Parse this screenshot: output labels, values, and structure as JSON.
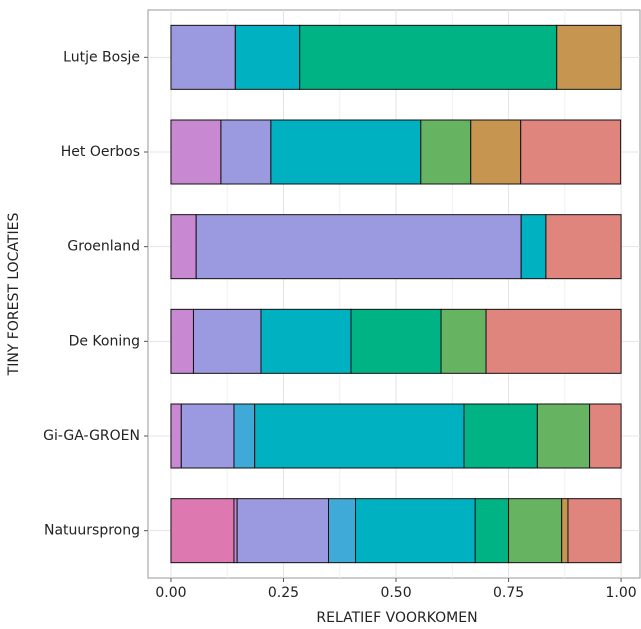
{
  "chart_data": {
    "type": "stacked-barh",
    "x_label": "RELATIEF VOORKOMEN",
    "y_label": "TINY FOREST LOCATIES",
    "categories": [
      "Lutje Bosje",
      "Het Oerbos",
      "Groenland",
      "De Koning",
      "Gi-GA-GROEN",
      "Natuursprong"
    ],
    "series": [
      {
        "color": "#de78b0",
        "values": [
          null,
          null,
          null,
          null,
          null,
          0.14
        ]
      },
      {
        "color": "#c888d2",
        "values": [
          null,
          0.111,
          0.056,
          0.05,
          0.023,
          0.007
        ]
      },
      {
        "color": "#9b9ae0",
        "values": [
          0.143,
          0.111,
          0.722,
          0.15,
          0.117,
          0.203
        ]
      },
      {
        "color": "#3fa9d8",
        "values": [
          null,
          null,
          null,
          null,
          0.046,
          0.06
        ]
      },
      {
        "color": "#00b1c1",
        "values": [
          0.143,
          0.333,
          0.055,
          0.2,
          0.465,
          0.266
        ]
      },
      {
        "color": "#00b384",
        "values": [
          0.571,
          null,
          null,
          0.2,
          0.163,
          0.074
        ]
      },
      {
        "color": "#66b462",
        "values": [
          null,
          0.111,
          null,
          0.1,
          0.116,
          0.118
        ]
      },
      {
        "color": "#c69651",
        "values": [
          0.143,
          0.111,
          null,
          null,
          null,
          0.014
        ]
      },
      {
        "color": "#e0857e",
        "values": [
          null,
          0.222,
          0.167,
          0.3,
          0.07,
          0.118
        ]
      }
    ],
    "xlim": [
      -0.051,
      1.042
    ],
    "xticks": [
      {
        "value": 0,
        "label": "0.00"
      },
      {
        "value": 0.25,
        "label": "0.25"
      },
      {
        "value": 0.5,
        "label": "0.50"
      },
      {
        "value": 0.75,
        "label": "0.75"
      },
      {
        "value": 1,
        "label": "1.00"
      }
    ],
    "grid": true
  }
}
